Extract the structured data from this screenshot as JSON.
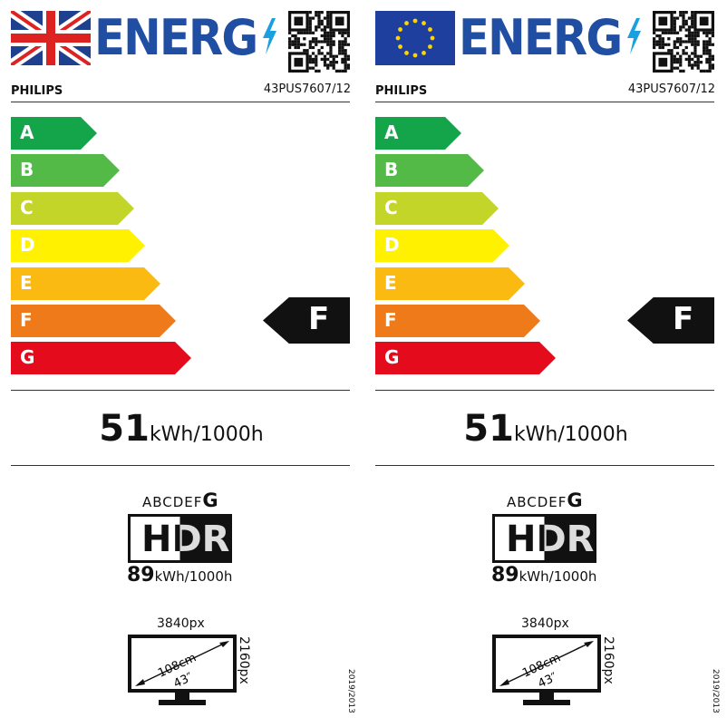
{
  "labels": [
    {
      "flag": "uk-flag",
      "header": {
        "title": "ENERG",
        "brand": "PHILIPS",
        "model": "43PUS7607/12"
      },
      "scale": {
        "classes": [
          "A",
          "B",
          "C",
          "D",
          "E",
          "F",
          "G"
        ],
        "colors": [
          "#14a44a",
          "#53b947",
          "#c4d52a",
          "#fff100",
          "#fbba12",
          "#ef7a1a",
          "#e30b1c"
        ],
        "rating": "F"
      },
      "sdr": {
        "value": "51",
        "unit": "kWh/1000h"
      },
      "hdr": {
        "scale_prefix": "ABCDEF",
        "scale_class": "G",
        "logo": "HDR",
        "value": "89",
        "unit": "kWh/1000h"
      },
      "screen": {
        "width_px": "3840px",
        "height_px": "2160px",
        "diag_cm": "108cm",
        "diag_in": "43″"
      },
      "regulation": "2019/2013"
    },
    {
      "flag": "eu-flag",
      "header": {
        "title": "ENERG",
        "brand": "PHILIPS",
        "model": "43PUS7607/12"
      },
      "scale": {
        "classes": [
          "A",
          "B",
          "C",
          "D",
          "E",
          "F",
          "G"
        ],
        "colors": [
          "#14a44a",
          "#53b947",
          "#c4d52a",
          "#fff100",
          "#fbba12",
          "#ef7a1a",
          "#e30b1c"
        ],
        "rating": "F"
      },
      "sdr": {
        "value": "51",
        "unit": "kWh/1000h"
      },
      "hdr": {
        "scale_prefix": "ABCDEF",
        "scale_class": "G",
        "logo": "HDR",
        "value": "89",
        "unit": "kWh/1000h"
      },
      "screen": {
        "width_px": "3840px",
        "height_px": "2160px",
        "diag_cm": "108cm",
        "diag_in": "43″"
      },
      "regulation": "2019/2013"
    }
  ]
}
